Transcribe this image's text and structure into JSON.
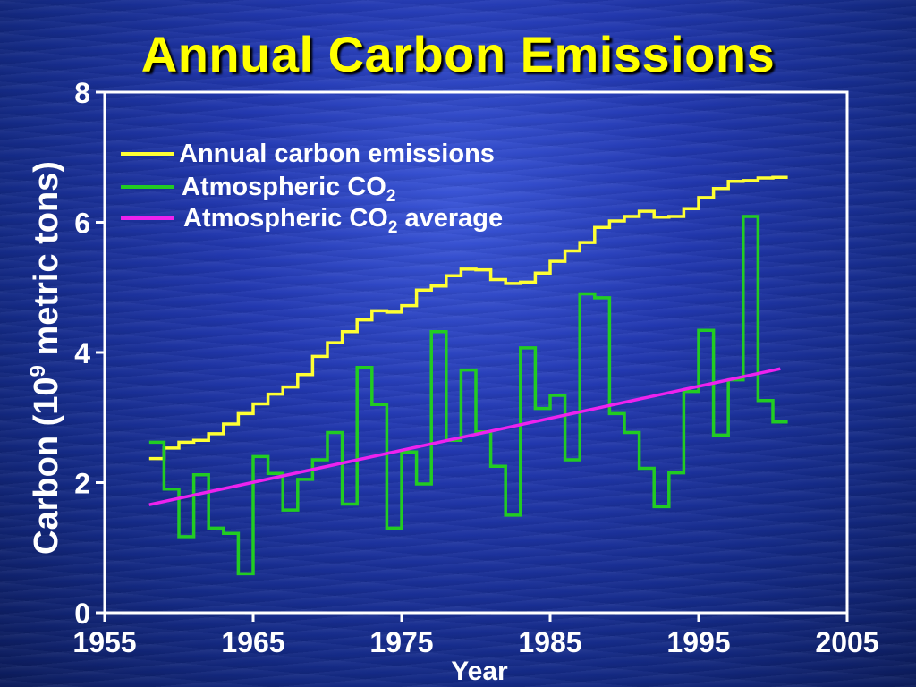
{
  "chart_data": {
    "type": "line",
    "title": "Annual Carbon Emissions",
    "xlabel": "Year",
    "ylabel": "Carbon (10^9 metric tons)",
    "ylabel_parts": {
      "before": "Carbon (10",
      "sup": "9",
      "after": " metric tons)"
    },
    "xlim": [
      1955,
      2005
    ],
    "ylim": [
      0,
      8
    ],
    "x_ticks": [
      1955,
      1965,
      1975,
      1985,
      1995,
      2005
    ],
    "y_ticks": [
      0,
      2,
      4,
      6,
      8
    ],
    "grid": false,
    "legend_position": "top-left",
    "series": [
      {
        "name": "Annual carbon emissions",
        "color": "#ffff33",
        "style": "step",
        "x": [
          1958,
          1959,
          1960,
          1961,
          1962,
          1963,
          1964,
          1965,
          1966,
          1967,
          1968,
          1969,
          1970,
          1971,
          1972,
          1973,
          1974,
          1975,
          1976,
          1977,
          1978,
          1979,
          1980,
          1981,
          1982,
          1983,
          1984,
          1985,
          1986,
          1987,
          1988,
          1989,
          1990,
          1991,
          1992,
          1993,
          1994,
          1995,
          1996,
          1997,
          1998,
          1999,
          2000
        ],
        "values": [
          2.37,
          2.53,
          2.62,
          2.65,
          2.75,
          2.9,
          3.06,
          3.21,
          3.36,
          3.47,
          3.66,
          3.94,
          4.15,
          4.32,
          4.5,
          4.64,
          4.62,
          4.72,
          4.96,
          5.02,
          5.18,
          5.28,
          5.27,
          5.12,
          5.06,
          5.08,
          5.22,
          5.4,
          5.56,
          5.69,
          5.92,
          6.02,
          6.09,
          6.17,
          6.08,
          6.09,
          6.21,
          6.38,
          6.52,
          6.63,
          6.64,
          6.68,
          6.69
        ]
      },
      {
        "name": "Atmospheric CO2",
        "name_parts": {
          "base": "Atmospheric CO",
          "sub": "2",
          "after": ""
        },
        "color": "#22cc22",
        "style": "step",
        "x": [
          1958,
          1959,
          1960,
          1961,
          1962,
          1963,
          1964,
          1965,
          1966,
          1967,
          1968,
          1969,
          1970,
          1971,
          1972,
          1973,
          1974,
          1975,
          1976,
          1977,
          1978,
          1979,
          1980,
          1981,
          1982,
          1983,
          1984,
          1985,
          1986,
          1987,
          1988,
          1989,
          1990,
          1991,
          1992,
          1993,
          1994,
          1995,
          1996,
          1997,
          1998,
          1999,
          2000
        ],
        "values": [
          2.62,
          1.9,
          1.17,
          2.12,
          1.3,
          1.22,
          0.6,
          2.4,
          2.14,
          1.58,
          2.05,
          2.35,
          2.77,
          1.67,
          3.77,
          3.2,
          1.3,
          2.47,
          1.98,
          4.32,
          2.65,
          3.73,
          2.78,
          2.25,
          1.5,
          4.07,
          3.14,
          3.34,
          2.35,
          4.9,
          4.84,
          3.06,
          2.77,
          2.22,
          1.63,
          2.15,
          3.4,
          4.34,
          2.73,
          3.58,
          6.09,
          3.26,
          2.93
        ]
      },
      {
        "name": "Atmospheric CO2 average",
        "name_parts": {
          "base": "Atmospheric CO",
          "sub": "2",
          "after": " average"
        },
        "color": "#ee22ee",
        "style": "line",
        "x": [
          1958,
          2000.5
        ],
        "values": [
          1.66,
          3.75
        ]
      }
    ]
  }
}
